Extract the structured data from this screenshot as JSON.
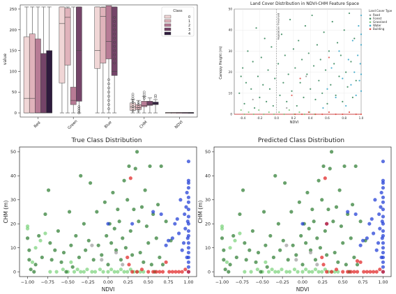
{
  "chart_data": [
    {
      "type": "box",
      "title": "",
      "xlabel": "",
      "ylabel": "value",
      "ylim": [
        -10,
        260
      ],
      "yticks": [
        0,
        50,
        100,
        150,
        200,
        250
      ],
      "categories": [
        "Red",
        "Green",
        "Blue",
        "CHM",
        "NDVI"
      ],
      "legend": {
        "title": "Class",
        "position": "top-right",
        "labels": [
          "0",
          "1",
          "2",
          "3",
          "4"
        ]
      },
      "class_colors": [
        "#f0d6d6",
        "#e0b3bb",
        "#b77b95",
        "#744468",
        "#2e1b3d"
      ],
      "boxes": {
        "Red": [
          [
            0,
            0,
            35,
            183,
            255
          ],
          [
            0,
            0,
            35,
            190,
            255
          ],
          [
            0,
            0,
            0,
            178,
            255
          ],
          [
            0,
            0,
            0,
            143,
            255
          ],
          [
            0,
            0,
            0,
            150,
            255
          ]
        ],
        "Green": [
          [
            0,
            72,
            215,
            255,
            255
          ],
          [
            0,
            115,
            230,
            252,
            255
          ],
          [
            0,
            20,
            30,
            62,
            255
          ],
          [
            0,
            28,
            150,
            255,
            255
          ],
          null
        ],
        "Blue": [
          [
            0,
            107,
            150,
            255,
            255
          ],
          [
            0,
            120,
            232,
            254,
            255
          ],
          [
            0,
            130,
            172,
            258,
            255
          ],
          [
            0,
            90,
            100,
            255,
            255
          ],
          null
        ],
        "CHM": [
          [
            0,
            6,
            14,
            24,
            33
          ],
          [
            0,
            8,
            13,
            20,
            30
          ],
          [
            0,
            15,
            18,
            28,
            40
          ],
          [
            0,
            18,
            21,
            28,
            36
          ],
          [
            0,
            20,
            22,
            26,
            32
          ]
        ],
        "NDVI": [
          [
            0,
            0,
            1,
            1,
            1
          ],
          [
            0,
            0,
            1,
            1,
            1
          ],
          [
            0,
            0,
            1,
            1,
            1
          ],
          [
            0,
            0,
            1,
            1,
            1
          ],
          [
            0,
            0,
            1,
            1,
            1
          ]
        ]
      }
    },
    {
      "type": "scatter",
      "title": "Land Cover Distribution in NDVI-CHM Feature Space",
      "xlabel": "NDVI",
      "ylabel": "Canopy Height (m)",
      "xlim": [
        -0.5,
        1.0
      ],
      "ylim": [
        0,
        50
      ],
      "xticks": [
        -0.4,
        -0.2,
        0.0,
        0.2,
        0.4,
        0.6,
        0.8,
        1.0
      ],
      "yticks": [
        0,
        10,
        20,
        30,
        40,
        50
      ],
      "annotation": "Vegetation Threshold",
      "threshold_x": 0.0,
      "legend": {
        "title": "Land Cover Type",
        "position": "top-right",
        "items": [
          {
            "label": "Road",
            "color": "#9a9a9a"
          },
          {
            "label": "Forest",
            "color": "#3c8a5e"
          },
          {
            "label": "Grassland",
            "color": "#7fc97f"
          },
          {
            "label": "Water",
            "color": "#3aa6c8"
          },
          {
            "label": "Building",
            "color": "#e0524a"
          }
        ]
      }
    },
    {
      "type": "scatter",
      "title": "True Class Distribution",
      "xlabel": "NDVI",
      "ylabel": "CHM (m)",
      "xlim": [
        -1.1,
        1.1
      ],
      "ylim": [
        -2,
        52
      ],
      "xticks": [
        -1.0,
        -0.75,
        -0.5,
        -0.25,
        0.0,
        0.25,
        0.5,
        0.75,
        1.0
      ],
      "xtick_labels": [
        "−1.00",
        "−0.75",
        "−0.50",
        "−0.25",
        "0.00",
        "0.25",
        "0.50",
        "0.75",
        "1.00"
      ],
      "yticks": [
        0,
        10,
        20,
        30,
        40,
        50
      ]
    },
    {
      "type": "scatter",
      "title": "Predicted Class Distribution",
      "xlabel": "NDVI",
      "ylabel": "CHM (m)",
      "xlim": [
        -1.1,
        1.1
      ],
      "ylim": [
        -2,
        52
      ],
      "xticks": [
        -1.0,
        -0.75,
        -0.5,
        -0.25,
        0.0,
        0.25,
        0.5,
        0.75,
        1.0
      ],
      "xtick_labels": [
        "−1.00",
        "−0.75",
        "−0.50",
        "−0.25",
        "0.00",
        "0.25",
        "0.50",
        "0.75",
        "1.00"
      ],
      "yticks": [
        0,
        10,
        20,
        30,
        40,
        50
      ]
    }
  ],
  "class_points": {
    "colors": {
      "forest": "#2e7d32",
      "grass": "#7bd37b",
      "road": "#9e9e9e",
      "water": "#1f3bd6",
      "building": "#e02222"
    },
    "forest": [
      [
        -1.0,
        14
      ],
      [
        -0.98,
        9
      ],
      [
        -0.98,
        5
      ],
      [
        -0.96,
        1
      ],
      [
        -0.92,
        0
      ],
      [
        -0.9,
        3
      ],
      [
        -0.86,
        15
      ],
      [
        -0.82,
        6
      ],
      [
        -0.78,
        24
      ],
      [
        -0.74,
        34
      ],
      [
        -0.72,
        12
      ],
      [
        -0.7,
        5
      ],
      [
        -0.66,
        9
      ],
      [
        -0.62,
        17
      ],
      [
        -0.58,
        4
      ],
      [
        -0.55,
        8
      ],
      [
        -0.52,
        0
      ],
      [
        -0.48,
        25
      ],
      [
        -0.46,
        11
      ],
      [
        -0.44,
        2
      ],
      [
        -0.4,
        15
      ],
      [
        -0.36,
        6
      ],
      [
        -0.34,
        40
      ],
      [
        -0.3,
        20
      ],
      [
        -0.28,
        9
      ],
      [
        -0.24,
        13
      ],
      [
        -0.22,
        37
      ],
      [
        -0.18,
        5
      ],
      [
        -0.14,
        25
      ],
      [
        -0.12,
        11
      ],
      [
        -0.08,
        7
      ],
      [
        -0.04,
        29
      ],
      [
        -0.02,
        15
      ],
      [
        0.0,
        3
      ],
      [
        0.02,
        20
      ],
      [
        0.04,
        12
      ],
      [
        0.06,
        33
      ],
      [
        0.08,
        18
      ],
      [
        0.1,
        9
      ],
      [
        0.12,
        26
      ],
      [
        0.14,
        21
      ],
      [
        0.16,
        5
      ],
      [
        0.18,
        14
      ],
      [
        0.2,
        38
      ],
      [
        0.22,
        10
      ],
      [
        0.24,
        30
      ],
      [
        0.26,
        44
      ],
      [
        0.28,
        17
      ],
      [
        0.3,
        7
      ],
      [
        0.32,
        26
      ],
      [
        0.34,
        43
      ],
      [
        0.36,
        50
      ],
      [
        0.38,
        21
      ],
      [
        0.4,
        8
      ],
      [
        0.42,
        27
      ],
      [
        0.44,
        4
      ],
      [
        0.46,
        34
      ],
      [
        0.48,
        19
      ],
      [
        0.5,
        12
      ],
      [
        0.52,
        44
      ],
      [
        0.54,
        3
      ],
      [
        0.56,
        24
      ],
      [
        0.58,
        0
      ],
      [
        0.6,
        14
      ],
      [
        0.62,
        28
      ],
      [
        0.64,
        6
      ],
      [
        0.66,
        44
      ],
      [
        0.68,
        3
      ],
      [
        0.72,
        21
      ],
      [
        0.78,
        13
      ]
    ],
    "grass": [
      [
        -1.0,
        19
      ],
      [
        -1.0,
        18
      ],
      [
        -0.94,
        4
      ],
      [
        -0.9,
        10
      ],
      [
        -0.84,
        13
      ],
      [
        -0.78,
        16
      ],
      [
        -0.72,
        0
      ],
      [
        -0.64,
        0
      ],
      [
        -0.56,
        1
      ],
      [
        -0.5,
        0
      ],
      [
        -0.46,
        4
      ],
      [
        -0.42,
        0
      ],
      [
        -0.38,
        1
      ],
      [
        -0.34,
        0
      ],
      [
        -0.3,
        0
      ],
      [
        -0.26,
        1
      ],
      [
        -0.2,
        0
      ],
      [
        -0.16,
        0
      ],
      [
        -0.1,
        1
      ],
      [
        -0.06,
        0
      ],
      [
        0.0,
        0
      ],
      [
        0.04,
        1
      ],
      [
        0.08,
        0
      ],
      [
        0.12,
        0
      ],
      [
        0.16,
        1
      ],
      [
        0.2,
        0
      ],
      [
        0.24,
        0
      ],
      [
        0.28,
        1
      ],
      [
        0.32,
        0
      ],
      [
        0.36,
        0
      ],
      [
        0.4,
        0
      ],
      [
        0.44,
        0
      ]
    ],
    "road": [
      [
        -0.2,
        11
      ],
      [
        -0.08,
        5
      ],
      [
        0.1,
        8
      ],
      [
        0.18,
        3
      ]
    ],
    "water": [
      [
        0.0,
        20
      ],
      [
        0.3,
        20
      ],
      [
        0.56,
        25
      ],
      [
        0.66,
        24
      ],
      [
        0.72,
        11
      ],
      [
        0.75,
        13
      ],
      [
        0.8,
        14
      ],
      [
        0.83,
        20
      ],
      [
        0.86,
        22
      ],
      [
        0.88,
        16
      ],
      [
        0.9,
        30
      ],
      [
        0.92,
        9
      ],
      [
        0.94,
        12
      ],
      [
        0.95,
        24
      ],
      [
        0.96,
        18
      ],
      [
        0.97,
        27
      ],
      [
        0.98,
        33
      ],
      [
        0.98,
        6
      ],
      [
        0.99,
        14
      ],
      [
        0.99,
        21
      ],
      [
        1.0,
        46
      ],
      [
        1.0,
        38
      ],
      [
        1.0,
        37
      ],
      [
        1.0,
        35
      ],
      [
        1.0,
        31
      ],
      [
        1.0,
        29
      ],
      [
        1.0,
        26
      ],
      [
        1.0,
        23
      ],
      [
        1.0,
        20
      ],
      [
        1.0,
        17
      ],
      [
        1.0,
        15
      ],
      [
        1.0,
        12
      ],
      [
        1.0,
        10
      ],
      [
        1.0,
        8
      ],
      [
        1.0,
        6
      ],
      [
        1.0,
        4
      ],
      [
        1.0,
        2
      ],
      [
        1.0,
        0
      ]
    ],
    "building": [
      [
        0.24,
        6
      ],
      [
        0.26,
        3
      ],
      [
        0.28,
        39
      ],
      [
        0.3,
        0
      ],
      [
        0.36,
        0
      ],
      [
        0.42,
        1
      ],
      [
        0.5,
        0
      ],
      [
        0.56,
        0
      ],
      [
        0.6,
        0
      ],
      [
        0.64,
        0
      ],
      [
        0.68,
        0
      ],
      [
        0.72,
        4
      ],
      [
        0.76,
        0
      ],
      [
        0.8,
        0
      ],
      [
        0.84,
        0
      ],
      [
        0.88,
        0
      ],
      [
        0.92,
        0
      ],
      [
        0.96,
        1
      ],
      [
        1.0,
        0
      ]
    ]
  },
  "figure4_point_overrides": [
    [
      0.68,
      4.5,
      "building"
    ],
    [
      0.3,
      20,
      "building"
    ]
  ],
  "chart2_points": {
    "road": [
      [
        0.35,
        18
      ],
      [
        0.12,
        3
      ],
      [
        -0.28,
        7
      ]
    ],
    "forest": [
      [
        -0.44,
        10
      ],
      [
        -0.42,
        18
      ],
      [
        -0.4,
        22
      ],
      [
        -0.38,
        5
      ],
      [
        -0.36,
        15
      ],
      [
        -0.34,
        30
      ],
      [
        -0.3,
        12
      ],
      [
        -0.28,
        25
      ],
      [
        -0.26,
        3
      ],
      [
        -0.24,
        41
      ],
      [
        -0.22,
        18
      ],
      [
        -0.2,
        8
      ],
      [
        -0.18,
        27
      ],
      [
        -0.16,
        14
      ],
      [
        -0.14,
        36
      ],
      [
        -0.12,
        6
      ],
      [
        -0.1,
        21
      ],
      [
        -0.08,
        12
      ],
      [
        -0.06,
        32
      ],
      [
        -0.04,
        4
      ],
      [
        -0.02,
        17
      ],
      [
        0.02,
        24
      ],
      [
        0.04,
        9
      ],
      [
        0.06,
        38
      ],
      [
        0.08,
        15
      ],
      [
        0.1,
        28
      ],
      [
        0.12,
        6
      ],
      [
        0.14,
        19
      ],
      [
        0.16,
        45
      ],
      [
        0.18,
        11
      ],
      [
        0.2,
        31
      ],
      [
        0.22,
        22
      ],
      [
        0.24,
        4
      ],
      [
        0.26,
        35
      ],
      [
        0.28,
        15
      ],
      [
        0.3,
        26
      ],
      [
        0.32,
        8
      ],
      [
        0.34,
        42
      ],
      [
        0.36,
        19
      ],
      [
        0.38,
        29
      ],
      [
        0.4,
        12
      ],
      [
        0.42,
        47
      ],
      [
        0.44,
        23
      ],
      [
        0.46,
        7
      ],
      [
        0.48,
        33
      ],
      [
        0.5,
        16
      ],
      [
        0.52,
        26
      ],
      [
        0.54,
        10
      ],
      [
        0.56,
        39
      ],
      [
        0.58,
        21
      ],
      [
        0.6,
        5
      ],
      [
        0.62,
        30
      ],
      [
        0.64,
        14
      ],
      [
        0.66,
        44
      ],
      [
        0.68,
        24
      ],
      [
        0.7,
        9
      ],
      [
        0.72,
        34
      ],
      [
        0.74,
        18
      ],
      [
        0.76,
        28
      ],
      [
        0.78,
        6
      ],
      [
        0.8,
        40
      ],
      [
        0.82,
        20
      ],
      [
        0.84,
        13
      ],
      [
        0.86,
        48
      ],
      [
        0.88,
        25
      ],
      [
        0.9,
        8
      ],
      [
        0.92,
        36
      ],
      [
        0.94,
        16
      ]
    ],
    "grass": [
      [
        -0.42,
        2
      ],
      [
        -0.38,
        0
      ],
      [
        -0.33,
        1
      ],
      [
        -0.27,
        0
      ],
      [
        -0.21,
        2
      ],
      [
        -0.15,
        0
      ],
      [
        -0.09,
        1
      ],
      [
        -0.03,
        0
      ],
      [
        0.03,
        1
      ],
      [
        0.09,
        0
      ],
      [
        0.15,
        2
      ],
      [
        0.21,
        0
      ],
      [
        0.27,
        1
      ],
      [
        0.33,
        0
      ],
      [
        0.39,
        1
      ],
      [
        0.45,
        0
      ]
    ],
    "water": [
      [
        0.55,
        3
      ],
      [
        0.6,
        12
      ],
      [
        0.65,
        22
      ],
      [
        0.7,
        8
      ],
      [
        0.74,
        30
      ],
      [
        0.78,
        17
      ],
      [
        0.82,
        4
      ],
      [
        0.85,
        26
      ],
      [
        0.88,
        14
      ],
      [
        0.9,
        35
      ],
      [
        0.92,
        20
      ],
      [
        0.94,
        9
      ],
      [
        0.96,
        28
      ],
      [
        0.97,
        42
      ],
      [
        0.98,
        16
      ],
      [
        0.99,
        24
      ],
      [
        1.0,
        47
      ],
      [
        1.0,
        33
      ],
      [
        1.0,
        11
      ],
      [
        1.0,
        19
      ],
      [
        1.0,
        38
      ]
    ],
    "building": [
      [
        0.22,
        0
      ],
      [
        0.3,
        0
      ],
      [
        0.38,
        1
      ],
      [
        0.46,
        0
      ],
      [
        0.54,
        0
      ],
      [
        0.62,
        1
      ],
      [
        0.7,
        0
      ],
      [
        0.78,
        0
      ],
      [
        0.86,
        1
      ],
      [
        0.94,
        0
      ],
      [
        1.0,
        0
      ],
      [
        0.28,
        17
      ],
      [
        0.18,
        9
      ],
      [
        0.62,
        27
      ]
    ]
  }
}
